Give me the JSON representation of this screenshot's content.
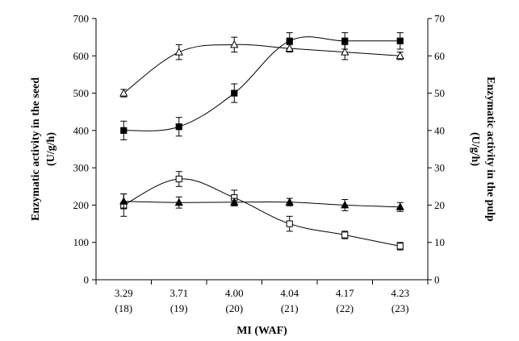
{
  "chart_data": {
    "type": "line",
    "xlabel": "MI (WAF)",
    "ylabel_left": "Enzymatic activity in the seed (U/g/h)",
    "ylabel_left_lines": [
      "Enzymatic activity in the seed",
      "(U/g/h)"
    ],
    "ylabel_right": "Enzymatic activity in the pulp (U/g/h)",
    "ylabel_right_lines": [
      "Enzymatic activity in the pulp",
      "(U/g/h)"
    ],
    "categories": [
      "3.29",
      "3.71",
      "4.00",
      "4.04",
      "4.17",
      "4.23"
    ],
    "subcategories": [
      "(18)",
      "(19)",
      "(20)",
      "(21)",
      "(22)",
      "(23)"
    ],
    "ylim_left": [
      0,
      700
    ],
    "yticks_left": [
      0,
      100,
      200,
      300,
      400,
      500,
      600,
      700
    ],
    "ylim_right": [
      0,
      70
    ],
    "yticks_right": [
      0,
      10,
      20,
      30,
      40,
      50,
      60,
      70
    ],
    "grid": false,
    "series": [
      {
        "marker": "filled-square",
        "axis": "left",
        "values": [
          400,
          410,
          500,
          640,
          640,
          640
        ],
        "errors": [
          25,
          25,
          25,
          22,
          22,
          22
        ]
      },
      {
        "marker": "open-triangle",
        "axis": "left",
        "values": [
          500,
          610,
          630,
          620,
          610,
          600
        ],
        "errors": [
          10,
          20,
          20,
          10,
          20,
          10
        ]
      },
      {
        "marker": "open-square",
        "axis": "left",
        "values": [
          200,
          270,
          220,
          150,
          120,
          90
        ],
        "errors": [
          30,
          20,
          20,
          20,
          10,
          10
        ]
      },
      {
        "marker": "filled-triangle",
        "axis": "left",
        "values": [
          210,
          207,
          208,
          208,
          200,
          195
        ],
        "errors": [
          20,
          15,
          10,
          10,
          15,
          12
        ]
      }
    ]
  }
}
